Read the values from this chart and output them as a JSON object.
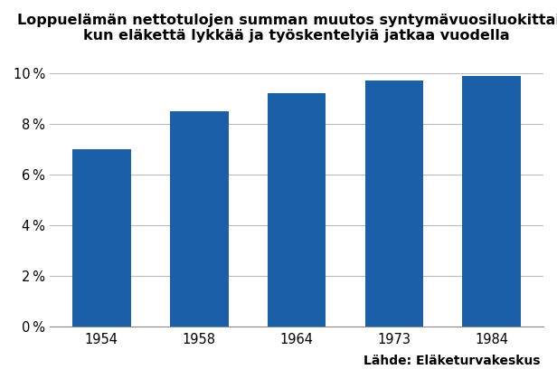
{
  "categories": [
    "1954",
    "1958",
    "1964",
    "1973",
    "1984"
  ],
  "values": [
    0.07,
    0.085,
    0.092,
    0.097,
    0.099
  ],
  "bar_color": "#1A5FA8",
  "title_line1": "Loppuelämän nettotulojen summan muutos syntymävuosiluokittain,",
  "title_line2": "kun eläkettä lykkää ja työskentelyiä jatkaa vuodella",
  "yticks": [
    0.0,
    0.02,
    0.04,
    0.06,
    0.08,
    0.1
  ],
  "ylim": [
    0,
    0.108
  ],
  "source_text": "Lähde: Eläketurvakeskus",
  "background_color": "#ffffff",
  "title_fontsize": 11.5,
  "tick_fontsize": 10.5,
  "source_fontsize": 10,
  "bar_width": 0.6
}
